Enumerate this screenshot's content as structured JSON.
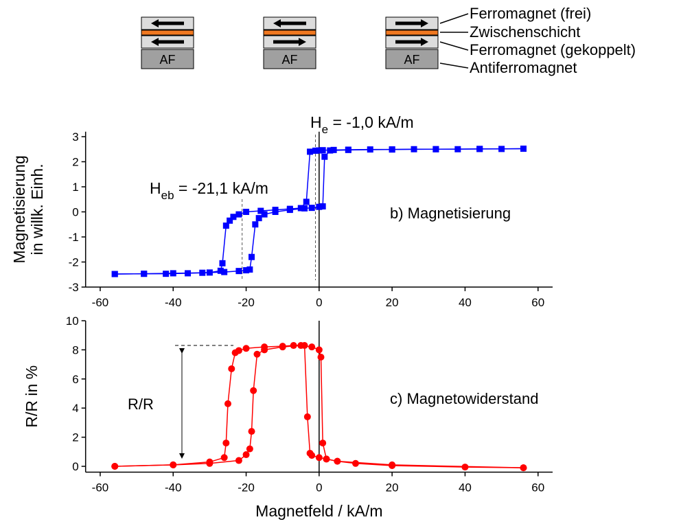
{
  "diagram": {
    "af_labels": [
      "AF",
      "AF",
      "AF"
    ],
    "layer_labels": [
      "Ferromagnet (frei)",
      "Zwischenschicht",
      "Ferromagnet (gekoppelt)",
      "Antiferromagnet"
    ]
  },
  "chart_data": [
    {
      "type": "line",
      "ylabel": [
        "Magnetisierung",
        "in willk. Einh."
      ],
      "note": "b) Magnetisierung",
      "annotations": [
        {
          "text": "H",
          "sub": "eb",
          "rest": " = -21,1 kA/m",
          "value": -21.1
        },
        {
          "text": "H",
          "sub": "e",
          "rest": " = -1,0 kA/m",
          "value": -1.0
        }
      ],
      "xlim": [
        -64,
        64
      ],
      "xticks": [
        -60,
        -40,
        -20,
        0,
        20,
        40,
        60
      ],
      "ylim": [
        -3,
        3.2
      ],
      "yticks": [
        -3,
        -2,
        -1,
        0,
        1,
        2,
        3
      ],
      "series": [
        {
          "color": "#0000ff",
          "marker": "square",
          "x": [
            56,
            50,
            44,
            38,
            32,
            26,
            20,
            14,
            8,
            4,
            1,
            0,
            -1,
            -2.5,
            -3.5,
            -5,
            -8,
            -12,
            -16,
            -20,
            -22,
            -23.5,
            -24.5,
            -25.5,
            -26.5,
            -27,
            -30,
            -36,
            -42,
            -48,
            -56
          ],
          "values": [
            2.52,
            2.51,
            2.51,
            2.5,
            2.5,
            2.5,
            2.49,
            2.49,
            2.48,
            2.47,
            2.46,
            2.45,
            2.44,
            2.4,
            0.4,
            0.15,
            0.12,
            0.08,
            0.04,
            0,
            -0.1,
            -0.2,
            -0.35,
            -0.55,
            -2.05,
            -2.35,
            -2.42,
            -2.45,
            -2.47,
            -2.47,
            -2.48
          ]
        },
        {
          "color": "#0000ff",
          "marker": "square",
          "x": [
            -56,
            -48,
            -40,
            -32,
            -26,
            -22,
            -20,
            -19,
            -18.5,
            -17.5,
            -16.5,
            -15,
            -12,
            -8,
            -4,
            -2,
            0,
            1,
            1.5,
            3,
            8,
            20,
            32,
            44,
            56
          ],
          "values": [
            -2.48,
            -2.47,
            -2.45,
            -2.43,
            -2.4,
            -2.36,
            -2.33,
            -2.3,
            -1.8,
            -0.5,
            -0.25,
            -0.1,
            0,
            0.08,
            0.14,
            0.16,
            0.2,
            0.22,
            2.2,
            2.45,
            2.47,
            2.49,
            2.5,
            2.51,
            2.52
          ]
        }
      ]
    },
    {
      "type": "line",
      "ylabel": [
        "R/R in %"
      ],
      "xlabel": "Magnetfeld / kA/m",
      "note": "c) Magnetowiderstand",
      "delta_label": "R/R",
      "xlim": [
        -64,
        64
      ],
      "xticks": [
        -60,
        -40,
        -20,
        0,
        20,
        40,
        60
      ],
      "ylim": [
        -0.4,
        10
      ],
      "yticks": [
        0,
        2,
        4,
        6,
        8,
        10
      ],
      "series": [
        {
          "color": "#ff0000",
          "marker": "circle",
          "x": [
            56,
            40,
            20,
            10,
            5,
            2,
            0,
            -2,
            -2.5,
            -3.2,
            -4,
            -7,
            -10,
            -15,
            -20,
            -22,
            -23,
            -24,
            -25,
            -25.5,
            -26,
            -30,
            -40,
            -56
          ],
          "values": [
            -0.1,
            -0.05,
            0.05,
            0.2,
            0.35,
            0.5,
            0.6,
            0.75,
            0.9,
            3.4,
            8.3,
            8.3,
            8.25,
            8.2,
            8.1,
            7.95,
            7.8,
            6.7,
            4.3,
            1.6,
            0.6,
            0.3,
            0.1,
            0
          ]
        },
        {
          "color": "#ff0000",
          "marker": "circle",
          "x": [
            -56,
            -40,
            -30,
            -22,
            -20,
            -19,
            -18.5,
            -18,
            -17,
            -15,
            -10,
            -5,
            -2,
            0,
            0.5,
            1,
            2,
            5,
            20,
            56
          ],
          "values": [
            0,
            0.1,
            0.2,
            0.4,
            0.8,
            1.2,
            2.4,
            5.2,
            7.7,
            8.0,
            8.2,
            8.3,
            8.2,
            8.0,
            7.5,
            1.6,
            0.5,
            0.35,
            0.1,
            -0.1
          ]
        }
      ]
    }
  ]
}
